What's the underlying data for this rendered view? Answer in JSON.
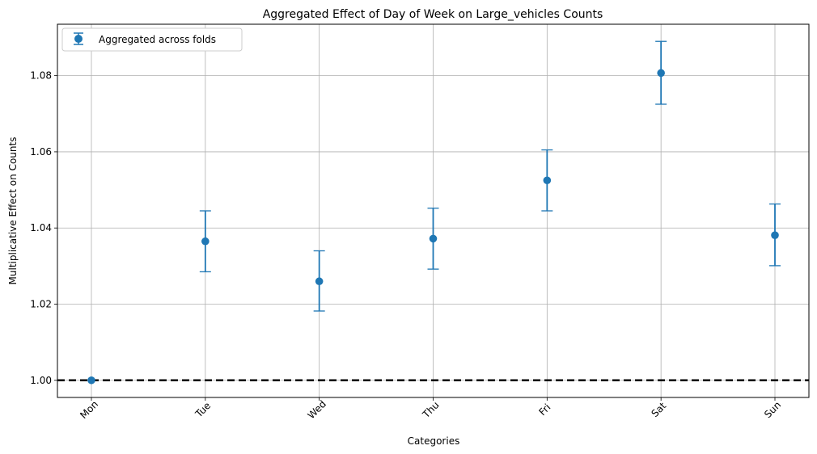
{
  "chart_data": {
    "type": "scatter",
    "title": "Aggregated Effect of Day of Week on Large_vehicles Counts",
    "xlabel": "Categories",
    "ylabel": "Multiplicative Effect on Counts",
    "categories": [
      "Mon",
      "Tue",
      "Wed",
      "Thu",
      "Fri",
      "Sat",
      "Sun"
    ],
    "series": [
      {
        "name": "Aggregated across folds",
        "values": [
          1.0,
          1.0365,
          1.026,
          1.0372,
          1.0525,
          1.0807,
          1.0381
        ],
        "error_lower": [
          1.0,
          1.0285,
          1.0182,
          1.0292,
          1.0445,
          1.0725,
          1.0301
        ],
        "error_upper": [
          1.0,
          1.0445,
          1.034,
          1.0452,
          1.0605,
          1.089,
          1.0463
        ]
      }
    ],
    "reference_line": {
      "y": 1.0,
      "style": "dashed",
      "color": "#000000"
    },
    "ylim": [
      0.9955,
      1.0935
    ],
    "yticks": [
      "1.00",
      "1.02",
      "1.04",
      "1.06",
      "1.08"
    ],
    "grid": true,
    "legend_position": "top-left",
    "series_color": "#1f77b4"
  }
}
